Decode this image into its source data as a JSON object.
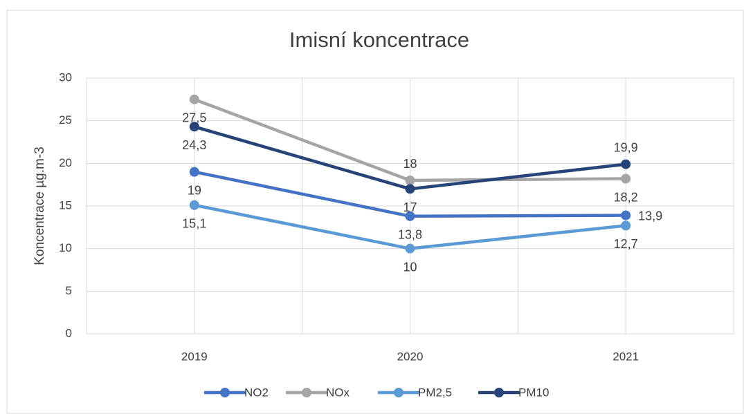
{
  "chart_data": {
    "type": "line",
    "title": "Imisní koncentrace",
    "y_label": "Koncentrace µg.m-3",
    "categories": [
      "2019",
      "2020",
      "2021"
    ],
    "series": [
      {
        "name": "NO2",
        "color": "#4472c4",
        "values": [
          19,
          13.8,
          13.9
        ],
        "value_labels": [
          "19",
          "13,8",
          "13,9"
        ]
      },
      {
        "name": "NOx",
        "color": "#a5a5a5",
        "values": [
          27.5,
          18,
          18.2
        ],
        "value_labels": [
          "27,5",
          "18",
          "18,2"
        ]
      },
      {
        "name": "PM2,5",
        "color": "#5b9bd5",
        "values": [
          15.1,
          10,
          12.7
        ],
        "value_labels": [
          "15,1",
          "10",
          "12,7"
        ]
      },
      {
        "name": "PM10",
        "color": "#264478",
        "values": [
          24.3,
          17,
          19.9
        ],
        "value_labels": [
          "24,3",
          "17",
          "19,9"
        ]
      }
    ],
    "ylim": [
      0,
      30
    ],
    "yticks": [
      0,
      5,
      10,
      15,
      20,
      25,
      30
    ],
    "grid": true,
    "legend": "bottom"
  }
}
